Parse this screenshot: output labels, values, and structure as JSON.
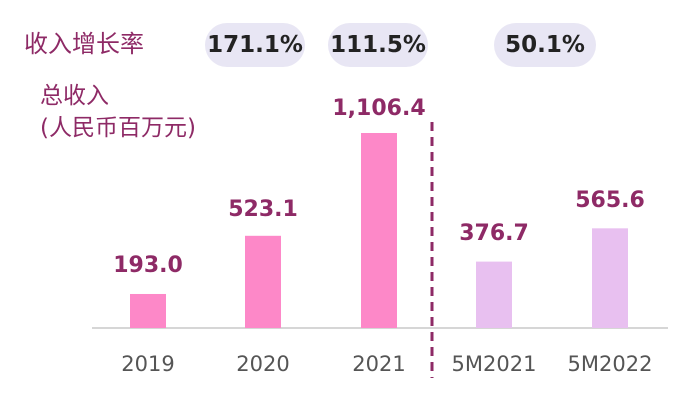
{
  "chart_data": {
    "type": "bar",
    "title_growth": "收入增长率",
    "ylabel_line1": "总收入",
    "ylabel_line2": "(人民币百万元)",
    "categories": [
      "2019",
      "2020",
      "2021",
      "5M2021",
      "5M2022"
    ],
    "values": [
      193.0,
      523.1,
      1106.4,
      376.7,
      565.6
    ],
    "value_labels": [
      "193.0",
      "523.1",
      "1,106.4",
      "376.7",
      "565.6"
    ],
    "growth_rates": [
      "171.1%",
      "111.5%",
      "50.1%"
    ],
    "colors": {
      "annual_bar": "#fd88c8",
      "period_bar": "#e8c0f0",
      "accent": "#8e2a66",
      "pill": "#e8e6f4"
    },
    "ylim": [
      0,
      1106.4
    ]
  }
}
